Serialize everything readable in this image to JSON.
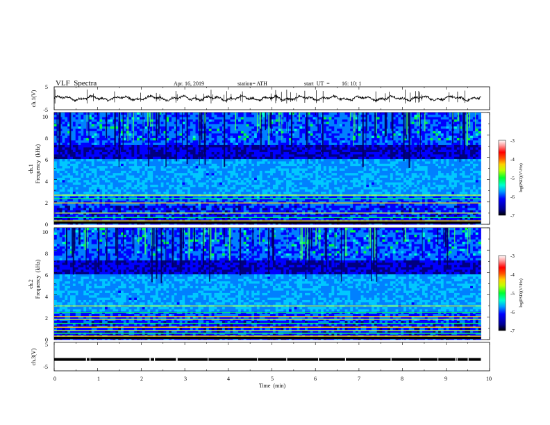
{
  "header": {
    "title": "VLF  Spectra",
    "date": "Apr. 16, 2019",
    "station": "station= ATH",
    "start_label": "start  UT  =",
    "start_time": "16: 10: 1"
  },
  "chart_data": [
    {
      "id": "ch1-waveform",
      "type": "line",
      "ylabel": "ch.1(V)",
      "yticks": [
        "5",
        "-5"
      ],
      "ylim": [
        -5,
        5
      ],
      "xlim": [
        0,
        10
      ],
      "approx_level": 0,
      "color": "#000000"
    },
    {
      "id": "ch1-spectrogram",
      "type": "heatmap",
      "channel_label": "ch.1",
      "ylabel": "Frequency  (kHz)",
      "yticks": [
        "0",
        "2",
        "4",
        "6",
        "8",
        "10"
      ],
      "ylim": [
        0,
        10
      ],
      "xlim": [
        0,
        10
      ],
      "colorbar": {
        "label": "log(PSD)(V²/Hz)",
        "ticks": [
          "-3",
          "-4",
          "-5",
          "-6",
          "-7"
        ],
        "range": [
          -7,
          -3
        ]
      }
    },
    {
      "id": "ch2-spectrogram",
      "type": "heatmap",
      "channel_label": "ch.2",
      "ylabel": "Frequency  (kHz)",
      "yticks": [
        "0",
        "2",
        "4",
        "6",
        "8",
        "10"
      ],
      "ylim": [
        0,
        10
      ],
      "xlim": [
        0,
        10
      ],
      "colorbar": {
        "label": "log(PSD)(V²/Hz)",
        "ticks": [
          "-3",
          "-4",
          "-5",
          "-6",
          "-7"
        ],
        "range": [
          -7,
          -3
        ]
      }
    },
    {
      "id": "ch3-waveform",
      "type": "line",
      "ylabel": "ch.3(V)",
      "yticks": [
        "5",
        "-5"
      ],
      "ylim": [
        -5,
        5
      ],
      "xlim": [
        0,
        10
      ],
      "approx_level": -1,
      "color": "#000000",
      "xlabel": "Time  (min)",
      "xticks": [
        "0",
        "1",
        "2",
        "3",
        "4",
        "5",
        "6",
        "7",
        "8",
        "9",
        "10"
      ]
    }
  ],
  "colormap": [
    "#000000",
    "#000080",
    "#0000ff",
    "#0080ff",
    "#00c8ff",
    "#00ffd0",
    "#00ff40",
    "#b0ff00",
    "#ffd000",
    "#ff6000",
    "#ff0000",
    "#ff9090",
    "#ffffff"
  ]
}
